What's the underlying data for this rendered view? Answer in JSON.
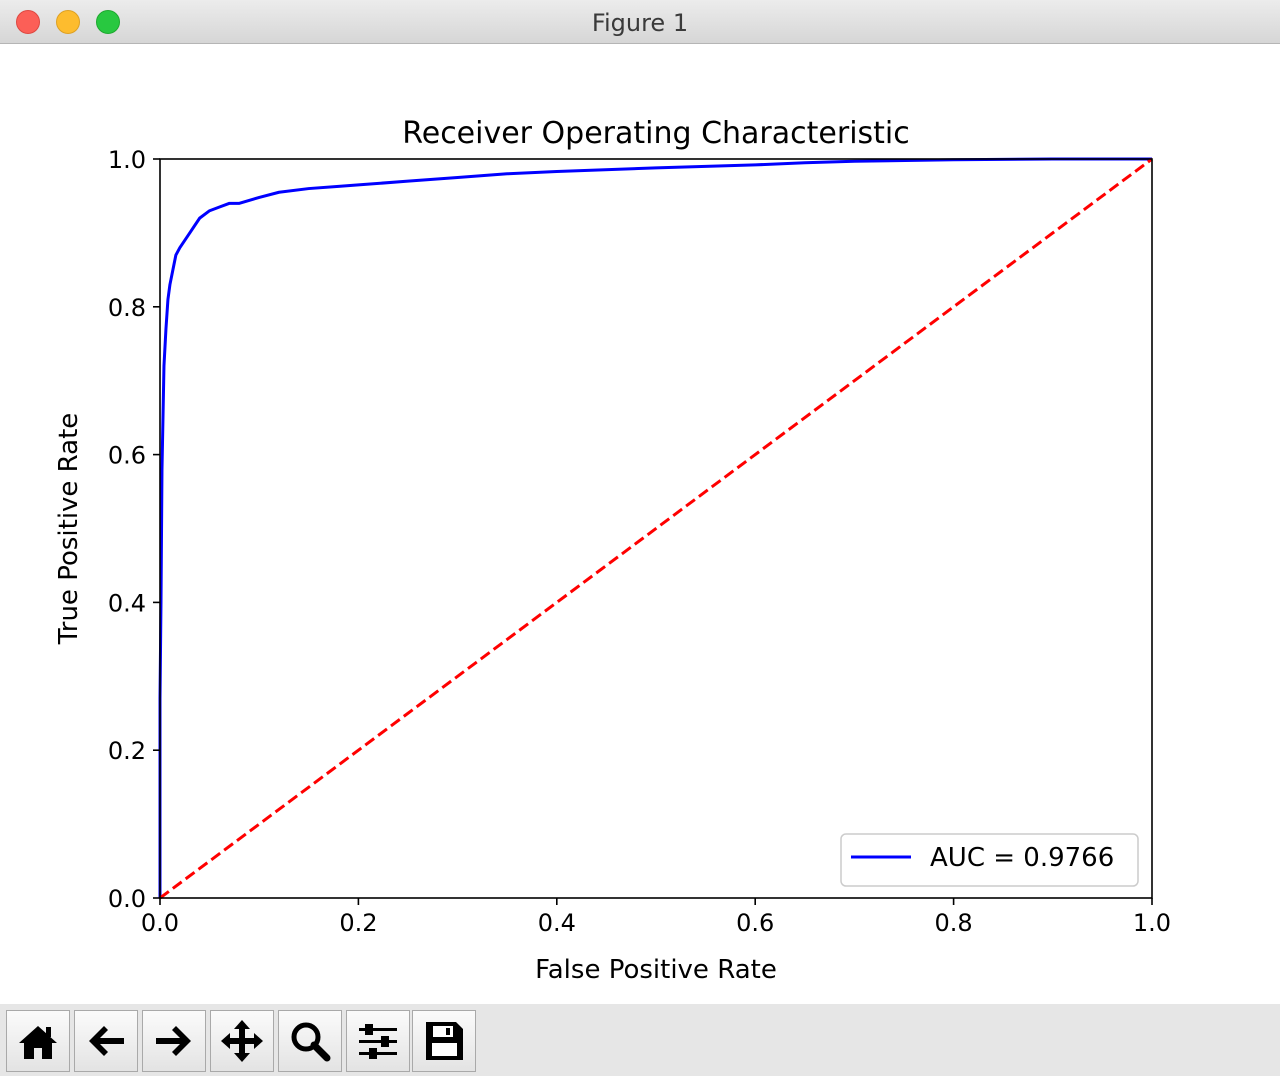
{
  "window": {
    "title": "Figure 1"
  },
  "toolbar": {
    "buttons": [
      {
        "icon": "home-icon",
        "action": "home"
      },
      {
        "icon": "arrow-left-icon",
        "action": "back"
      },
      {
        "icon": "arrow-right-icon",
        "action": "forward"
      },
      {
        "icon": "move-icon",
        "action": "pan"
      },
      {
        "icon": "zoom-icon",
        "action": "zoom"
      },
      {
        "icon": "sliders-icon",
        "action": "configure-subplots"
      },
      {
        "icon": "save-icon",
        "action": "save"
      }
    ]
  },
  "chart_data": {
    "type": "line",
    "title": "Receiver Operating Characteristic",
    "xlabel": "False Positive Rate",
    "ylabel": "True Positive Rate",
    "xlim": [
      0.0,
      1.0
    ],
    "ylim": [
      0.0,
      1.0
    ],
    "xticks": [
      "0.0",
      "0.2",
      "0.4",
      "0.6",
      "0.8",
      "1.0"
    ],
    "yticks": [
      "0.0",
      "0.2",
      "0.4",
      "0.6",
      "0.8",
      "1.0"
    ],
    "grid": false,
    "legend": {
      "placement": "lower-right",
      "entries": [
        "AUC = 0.9766"
      ]
    },
    "series": [
      {
        "name": "AUC = 0.9766",
        "color": "#0000ff",
        "style": "solid",
        "x": [
          0.0,
          0.0,
          0.001,
          0.002,
          0.003,
          0.004,
          0.006,
          0.008,
          0.01,
          0.013,
          0.016,
          0.02,
          0.025,
          0.03,
          0.035,
          0.04,
          0.05,
          0.06,
          0.07,
          0.08,
          0.1,
          0.12,
          0.15,
          0.18,
          0.2,
          0.25,
          0.3,
          0.35,
          0.4,
          0.5,
          0.6,
          0.65,
          0.7,
          0.8,
          0.9,
          1.0
        ],
        "y": [
          0.0,
          0.27,
          0.4,
          0.58,
          0.65,
          0.72,
          0.77,
          0.81,
          0.83,
          0.85,
          0.87,
          0.88,
          0.89,
          0.9,
          0.91,
          0.92,
          0.93,
          0.935,
          0.94,
          0.94,
          0.948,
          0.955,
          0.96,
          0.963,
          0.965,
          0.97,
          0.975,
          0.98,
          0.983,
          0.988,
          0.992,
          0.995,
          0.997,
          0.999,
          1.0,
          1.0
        ]
      },
      {
        "name": "",
        "color": "#ff0000",
        "style": "dashed",
        "x": [
          0.0,
          1.0
        ],
        "y": [
          0.0,
          1.0
        ]
      }
    ]
  }
}
